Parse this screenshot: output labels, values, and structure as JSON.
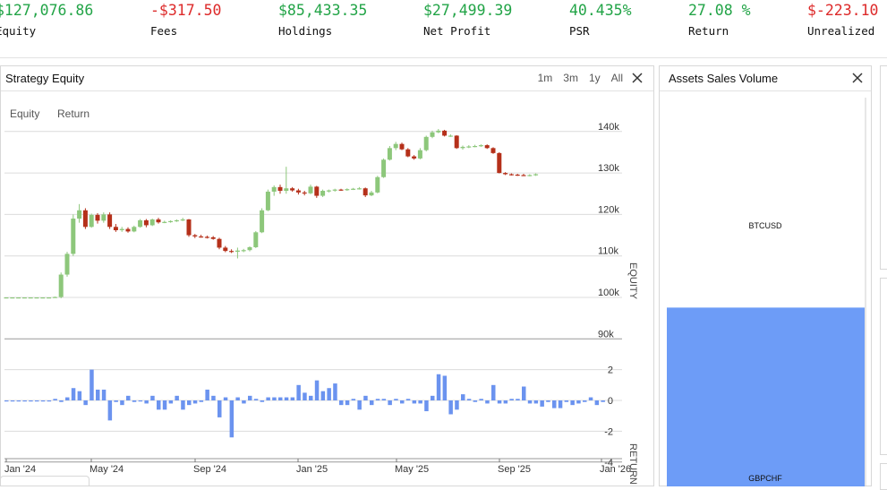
{
  "stats": [
    {
      "value": "$127,076.86",
      "label": "Equity",
      "tone": "pos"
    },
    {
      "value": "-$317.50",
      "label": "Fees",
      "tone": "neg"
    },
    {
      "value": "$85,433.35",
      "label": "Holdings",
      "tone": "pos"
    },
    {
      "value": "$27,499.39",
      "label": "Net Profit",
      "tone": "pos"
    },
    {
      "value": "40.435%",
      "label": "PSR",
      "tone": "pos"
    },
    {
      "value": "27.08 %",
      "label": "Return",
      "tone": "pos"
    },
    {
      "value": "$-223.10",
      "label": "Unrealized",
      "tone": "neg"
    }
  ],
  "equity_panel": {
    "title": "Strategy Equity",
    "ranges": [
      "1m",
      "3m",
      "1y",
      "All"
    ],
    "tabs": [
      "Equity",
      "Return"
    ]
  },
  "sales_panel": {
    "title": "Assets Sales Volume",
    "labels": [
      "BTCUSD",
      "GBPCHF"
    ]
  },
  "colors": {
    "up": "#8dc77b",
    "down": "#b5301a",
    "return_bar": "#6b93ef",
    "sales_bar": "#6d9cf7",
    "positive": "#22a447",
    "negative": "#dd2a2a"
  },
  "chart_data": [
    {
      "type": "candlestick",
      "title": "Strategy Equity",
      "ylabel": "EQUITY",
      "ylim": [
        90000,
        140000
      ],
      "y_ticks": [
        "90k",
        "100k",
        "110k",
        "120k",
        "130k",
        "140k"
      ],
      "x_ticks": [
        "Jan '24",
        "May '24",
        "Sep '24",
        "Jan '25",
        "May '25",
        "Sep '25",
        "Jan '26"
      ],
      "ohlc": [
        [
          100000,
          100000,
          100000,
          100000
        ],
        [
          100000,
          100000,
          100000,
          100000
        ],
        [
          100000,
          100000,
          100000,
          100000
        ],
        [
          100000,
          100000,
          100000,
          100000
        ],
        [
          100000,
          100000,
          100000,
          100000
        ],
        [
          100000,
          100000,
          100000,
          100000
        ],
        [
          100000,
          100000,
          100000,
          100000
        ],
        [
          100000,
          100000,
          100000,
          100000
        ],
        [
          100000,
          100200,
          99900,
          100100
        ],
        [
          100100,
          106000,
          99800,
          105500
        ],
        [
          105500,
          111000,
          105000,
          110500
        ],
        [
          110500,
          120000,
          110000,
          119000
        ],
        [
          119000,
          122500,
          118000,
          121000
        ],
        [
          121000,
          121500,
          116500,
          117000
        ],
        [
          117000,
          120200,
          116800,
          119900
        ],
        [
          119900,
          120300,
          117800,
          118500
        ],
        [
          118500,
          120500,
          118000,
          120000
        ],
        [
          120000,
          120500,
          116500,
          117000
        ],
        [
          117000,
          117700,
          115800,
          116200
        ],
        [
          116200,
          117000,
          115800,
          116500
        ],
        [
          116500,
          116900,
          115600,
          115900
        ],
        [
          115900,
          117300,
          115700,
          117000
        ],
        [
          117000,
          118900,
          116800,
          118600
        ],
        [
          118600,
          118900,
          116900,
          117400
        ],
        [
          117400,
          119000,
          117200,
          118800
        ],
        [
          118800,
          119200,
          117800,
          118100
        ],
        [
          118100,
          118500,
          117900,
          118200
        ],
        [
          118200,
          118600,
          118000,
          118400
        ],
        [
          118400,
          118800,
          118200,
          118600
        ],
        [
          118600,
          119200,
          118400,
          118800
        ],
        [
          118800,
          118900,
          114600,
          115000
        ],
        [
          115000,
          115300,
          114300,
          114700
        ],
        [
          114700,
          115100,
          114400,
          114600
        ],
        [
          114600,
          114900,
          114200,
          114500
        ],
        [
          114500,
          114800,
          113900,
          114100
        ],
        [
          114100,
          114400,
          111600,
          112000
        ],
        [
          112000,
          112400,
          110900,
          111200
        ],
        [
          111200,
          111600,
          110700,
          111000
        ],
        [
          111000,
          112000,
          109400,
          111300
        ],
        [
          111300,
          111700,
          110900,
          111400
        ],
        [
          111400,
          112300,
          111100,
          112100
        ],
        [
          112100,
          116000,
          111900,
          115700
        ],
        [
          115700,
          121500,
          115500,
          121000
        ],
        [
          121000,
          126000,
          120800,
          125500
        ],
        [
          125500,
          127000,
          124500,
          126600
        ],
        [
          126600,
          127200,
          125000,
          125700
        ],
        [
          125700,
          131500,
          125000,
          126300
        ],
        [
          126300,
          126600,
          125500,
          125800
        ],
        [
          125800,
          126200,
          124800,
          125300
        ],
        [
          125300,
          125700,
          124600,
          125100
        ],
        [
          125100,
          127200,
          124900,
          126700
        ],
        [
          126700,
          126900,
          124000,
          124500
        ],
        [
          124500,
          126000,
          124200,
          125700
        ],
        [
          125700,
          126000,
          125300,
          125800
        ],
        [
          125800,
          126200,
          125500,
          126000
        ],
        [
          126000,
          126200,
          125700,
          125900
        ],
        [
          125900,
          126300,
          125700,
          126100
        ],
        [
          126100,
          126400,
          125900,
          126200
        ],
        [
          126200,
          126600,
          126000,
          126300
        ],
        [
          126300,
          126500,
          124200,
          124600
        ],
        [
          124600,
          125700,
          124400,
          125300
        ],
        [
          125300,
          129300,
          125100,
          129000
        ],
        [
          129000,
          133500,
          128800,
          133200
        ],
        [
          133200,
          136500,
          133000,
          136000
        ],
        [
          136000,
          137500,
          135500,
          137000
        ],
        [
          137000,
          137300,
          135500,
          135700
        ],
        [
          135700,
          136000,
          133800,
          134000
        ],
        [
          134000,
          134300,
          133200,
          133500
        ],
        [
          133500,
          136000,
          133300,
          135500
        ],
        [
          135500,
          139000,
          135200,
          138700
        ],
        [
          138700,
          140200,
          138400,
          139800
        ],
        [
          139800,
          140600,
          139600,
          140200
        ],
        [
          140200,
          140400,
          138800,
          139000
        ],
        [
          139000,
          139300,
          138700,
          139000
        ],
        [
          139000,
          139100,
          135800,
          136000
        ],
        [
          136000,
          136600,
          135600,
          136300
        ],
        [
          136300,
          136700,
          136000,
          136400
        ],
        [
          136400,
          136800,
          136200,
          136500
        ],
        [
          136500,
          136900,
          136300,
          136700
        ],
        [
          136700,
          136900,
          135800,
          136000
        ],
        [
          136000,
          136200,
          134600,
          134800
        ],
        [
          134800,
          135000,
          129900,
          130000
        ],
        [
          130000,
          130200,
          129500,
          129700
        ],
        [
          129700,
          129900,
          129400,
          129600
        ],
        [
          129600,
          129800,
          129300,
          129500
        ],
        [
          129500,
          129800,
          129300,
          129400
        ],
        [
          129400,
          129700,
          129200,
          129500
        ],
        [
          129500,
          129900,
          129300,
          129700
        ]
      ]
    },
    {
      "type": "bar",
      "title": "",
      "ylabel": "RETURN",
      "ylim": [
        -4,
        2
      ],
      "y_ticks": [
        "-4",
        "-2",
        "0",
        "2"
      ],
      "x_ticks": [
        "Jan '24",
        "May '24",
        "Sep '24",
        "Jan '25",
        "May '25",
        "Sep '25",
        "Jan '26"
      ],
      "values": [
        0,
        0,
        0,
        0,
        0,
        0,
        0,
        0,
        0.1,
        -0.1,
        0.2,
        0.8,
        0.6,
        -0.3,
        2.0,
        0.7,
        0.7,
        -1.3,
        -0.1,
        -0.3,
        0.3,
        -0.1,
        0,
        -0.2,
        0.3,
        -0.6,
        -0.6,
        -0.2,
        0.3,
        -0.6,
        -0.3,
        -0.2,
        -0.1,
        0.7,
        0.3,
        -1.1,
        0.2,
        -2.4,
        0.2,
        -0.2,
        0.3,
        0.1,
        -0.1,
        0.2,
        0.2,
        0.2,
        0.2,
        0.2,
        1.0,
        0.5,
        0.3,
        1.3,
        0.6,
        0.8,
        1.1,
        -0.3,
        -0.3,
        0.1,
        -0.6,
        0.3,
        -0.3,
        0.1,
        0.1,
        -0.3,
        0.1,
        -0.2,
        0.1,
        -0.2,
        -0.2,
        -0.7,
        0.3,
        1.7,
        1.6,
        -0.9,
        -0.6,
        0.4,
        0.1,
        -0.1,
        0.1,
        -0.2,
        1.0,
        -0.2,
        -0.2,
        0.1,
        0.1,
        0.9,
        -0.2,
        -0.2,
        -0.4,
        -0.1,
        -0.5,
        -0.5,
        -0.1,
        -0.3,
        -0.2,
        -0.1,
        0.2,
        -0.3,
        -0.1
      ],
      "grid": true
    },
    {
      "type": "bar",
      "title": "Assets Sales Volume",
      "categories": [
        "BTCUSD",
        "GBPCHF"
      ],
      "values": [
        0.54,
        0.46
      ]
    }
  ]
}
